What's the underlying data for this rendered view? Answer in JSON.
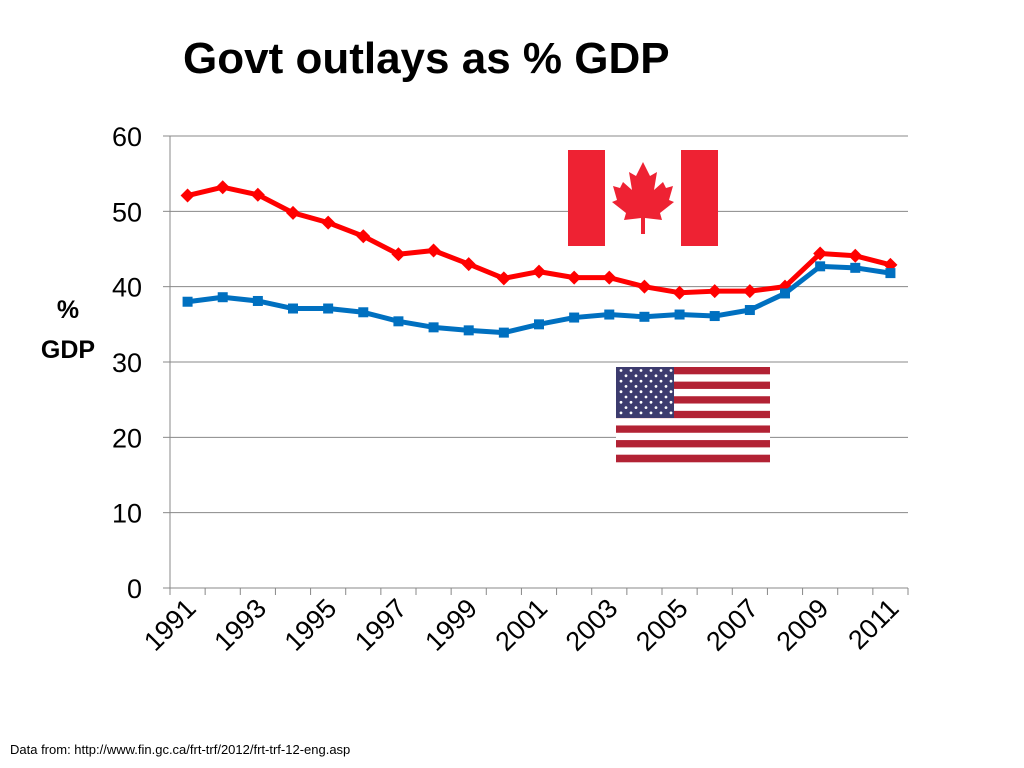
{
  "chart_data": {
    "type": "line",
    "title": "Govt outlays as % GDP",
    "ylabel": "% GDP",
    "ylabel_lines": [
      "%",
      "GDP"
    ],
    "xlabel": "",
    "ylim": [
      0,
      60
    ],
    "yticks": [
      0,
      10,
      20,
      30,
      40,
      50,
      60
    ],
    "x": [
      1991,
      1992,
      1993,
      1994,
      1995,
      1996,
      1997,
      1998,
      1999,
      2000,
      2001,
      2002,
      2003,
      2004,
      2005,
      2006,
      2007,
      2008,
      2009,
      2010,
      2011
    ],
    "xtick_labels": [
      "1991",
      "1993",
      "1995",
      "1997",
      "1999",
      "2001",
      "2003",
      "2005",
      "2007",
      "2009",
      "2011"
    ],
    "grid": true,
    "series": [
      {
        "name": "Canada",
        "color": "#ff0000",
        "marker": "diamond",
        "values": [
          52.1,
          53.2,
          52.2,
          49.8,
          48.5,
          46.7,
          44.3,
          44.8,
          43.0,
          41.1,
          42.0,
          41.2,
          41.2,
          40.0,
          39.2,
          39.4,
          39.4,
          40.0,
          44.4,
          44.1,
          42.9
        ]
      },
      {
        "name": "United States",
        "color": "#0070c0",
        "marker": "square",
        "values": [
          38.0,
          38.6,
          38.1,
          37.1,
          37.1,
          36.6,
          35.4,
          34.6,
          34.2,
          33.9,
          35.0,
          35.9,
          36.3,
          36.0,
          36.3,
          36.1,
          36.9,
          39.1,
          42.7,
          42.5,
          41.8
        ]
      }
    ]
  },
  "source": "Data from: http://www.fin.gc.ca/frt-trf/2012/frt-trf-12-eng.asp",
  "flags": {
    "canada": {
      "name": "canada-flag-icon",
      "red": "#ee2233",
      "white": "#ffffff"
    },
    "usa": {
      "name": "usa-flag-icon",
      "red": "#b22234",
      "blue": "#3c3b6e",
      "white": "#ffffff"
    }
  }
}
